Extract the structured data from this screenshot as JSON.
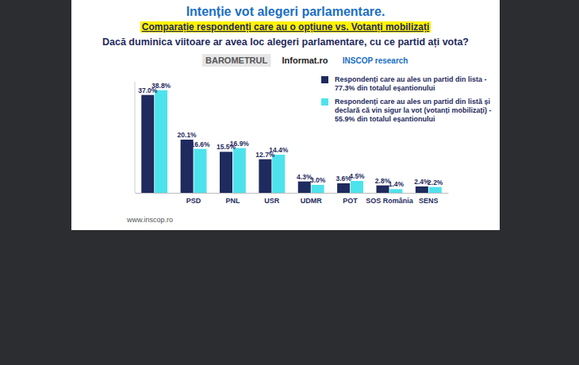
{
  "chart_data": {
    "type": "bar",
    "title": "Intenție vot alegeri parlamentare.",
    "subtitle": "Comparație respondenți care au o opțiune vs. Votanți mobilizați",
    "question": "Dacă duminica viitoare ar avea loc alegeri parlamentare, cu ce partid ați vota?",
    "logos": [
      "BAROMETRUL",
      "Informat.ro",
      "INSCOP research"
    ],
    "source": "www.inscop.ro",
    "categories": [
      null,
      "PSD",
      "PNL",
      "USR",
      "UDMR",
      "POT",
      "SOS România",
      "SENS"
    ],
    "series": [
      {
        "name": "Respondenți care au ales un partid din lista - 77.3% din totalul eșantionului",
        "color": "#1f2a5e",
        "values": [
          37.0,
          20.1,
          15.5,
          12.7,
          4.3,
          3.6,
          2.8,
          2.4
        ],
        "value_labels": [
          "37.0%",
          "20.1%",
          "15.5%",
          "12.7%",
          "4.3%",
          "3.6%",
          "2.8%",
          "2.4%"
        ]
      },
      {
        "name": "Respondenți care au ales un partid din listă și declară că vin sigur la vot (votanți mobilizați) - 55.9% din totalul eșantionului",
        "color": "#4de3ec",
        "values": [
          38.8,
          16.6,
          16.9,
          14.4,
          3.0,
          4.5,
          1.4,
          2.2
        ],
        "value_labels": [
          "38.8%",
          "16.6%",
          "16.9%",
          "14.4%",
          "3.0%",
          "4.5%",
          "1.4%",
          "2.2%"
        ]
      }
    ],
    "ylim": [
      0,
      42
    ],
    "tick_labels": "x",
    "data_labels": true,
    "legend": "upper right"
  }
}
